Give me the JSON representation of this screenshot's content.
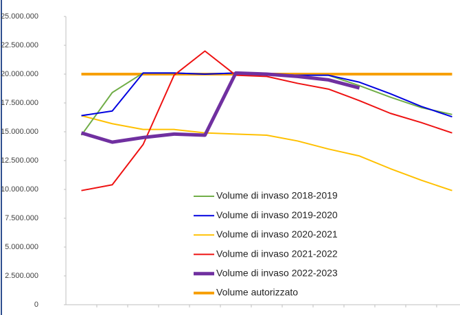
{
  "chart_data": {
    "type": "line",
    "categories": [
      null,
      null,
      null,
      null,
      null,
      null,
      null,
      null,
      null,
      null,
      null,
      null,
      null
    ],
    "series": [
      {
        "name": "Volume di invaso 2018-2019",
        "color": "#70ad47",
        "width": 2,
        "values": [
          14700000,
          18400000,
          20100000,
          20100000,
          20000000,
          20100000,
          20000000,
          19900000,
          19900000,
          19000000,
          18000000,
          17100000,
          16500000
        ]
      },
      {
        "name": "Volume di invaso 2019-2020",
        "color": "#0000e0",
        "width": 2,
        "values": [
          16400000,
          16800000,
          20100000,
          20100000,
          20000000,
          20100000,
          20000000,
          19900000,
          19900000,
          19300000,
          18300000,
          17200000,
          16300000
        ]
      },
      {
        "name": "Volume di invaso 2020-2021",
        "color": "#ffc000",
        "width": 2,
        "values": [
          16400000,
          15700000,
          15200000,
          15200000,
          14900000,
          14800000,
          14700000,
          14200000,
          13500000,
          12900000,
          11800000,
          10800000,
          9900000
        ]
      },
      {
        "name": "Volume di invaso 2021-2022",
        "color": "#ee1111",
        "width": 2,
        "values": [
          9900000,
          10400000,
          13900000,
          19900000,
          22000000,
          19900000,
          19800000,
          19200000,
          18700000,
          17700000,
          16600000,
          15800000,
          14900000
        ]
      },
      {
        "name": "Volume di invaso 2022-2023",
        "color": "#7030a0",
        "width": 5,
        "values": [
          14900000,
          14100000,
          14500000,
          14800000,
          14700000,
          20100000,
          20000000,
          19800000,
          19500000,
          18800000,
          null,
          null,
          null
        ]
      },
      {
        "name": "Volume autorizzato",
        "color": "#f7a000",
        "width": 4,
        "values": [
          20000000,
          20000000,
          20000000,
          20000000,
          20000000,
          20000000,
          20000000,
          20000000,
          20000000,
          20000000,
          20000000,
          20000000,
          20000000
        ]
      }
    ],
    "ylim": [
      0,
      25000000
    ],
    "yticks": [
      0,
      {
        "value": 2500000,
        "label": "2.500.000"
      },
      {
        "value": 5000000,
        "label": "5.000.000"
      },
      {
        "value": 7500000,
        "label": "7.500.000"
      },
      {
        "value": 10000000,
        "label": "10.000.000"
      },
      {
        "value": 12500000,
        "label": "12.500.000"
      },
      {
        "value": 15000000,
        "label": "15.000.000"
      },
      {
        "value": 17500000,
        "label": "17.500.000"
      },
      {
        "value": 20000000,
        "label": "20.000.000"
      },
      {
        "value": 22500000,
        "label": "22.500.000"
      },
      {
        "value": 25000000,
        "label": "25.000.000"
      }
    ],
    "grid": false,
    "legend": "lower center"
  }
}
